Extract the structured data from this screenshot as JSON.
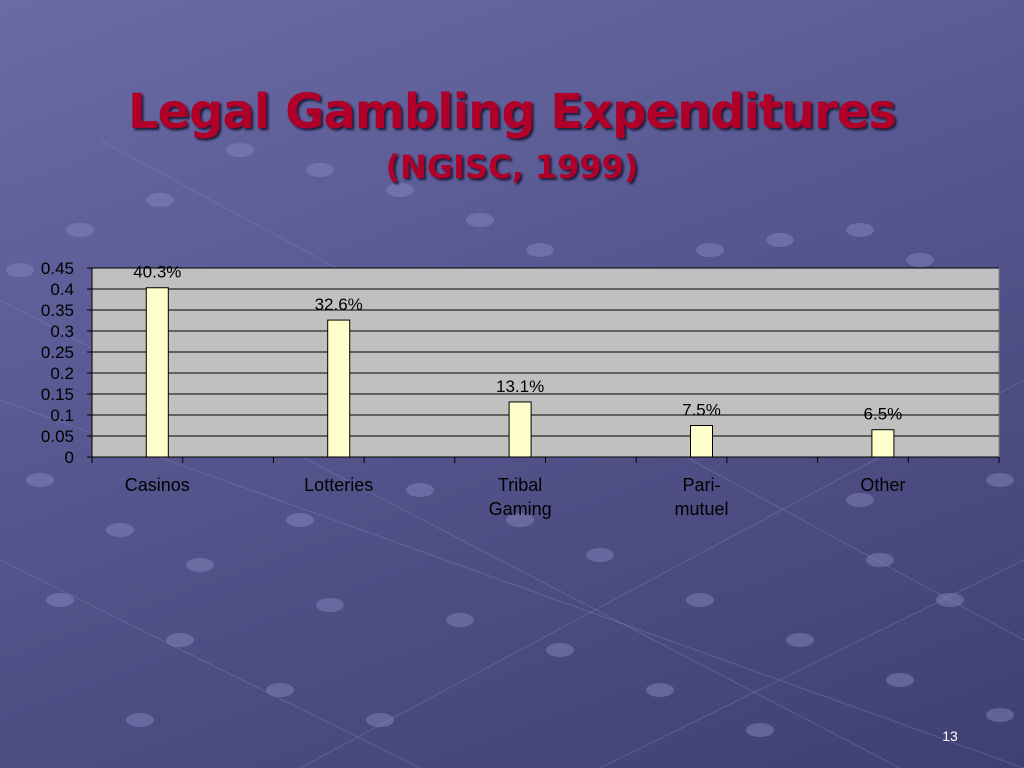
{
  "slide": {
    "title": "Legal Gambling Expenditures",
    "subtitle": "(NGISC, 1999)",
    "number": "13"
  },
  "colors": {
    "title": "#b0002a",
    "background": "#5b5b96",
    "plot_area": "#c0c0c0",
    "bar_fill": "#ffffcc",
    "bar_stroke": "#000000"
  },
  "chart_data": {
    "type": "bar",
    "categories": [
      [
        "Casinos"
      ],
      [
        "Lotteries"
      ],
      [
        "Tribal",
        "Gaming"
      ],
      [
        "Pari-",
        "mutuel"
      ],
      [
        "Other"
      ]
    ],
    "values": [
      0.403,
      0.326,
      0.131,
      0.075,
      0.065
    ],
    "data_labels": [
      "40.3%",
      "32.6%",
      "13.1%",
      "7.5%",
      "6.5%"
    ],
    "ylim": [
      0,
      0.45
    ],
    "yticks": [
      "0",
      "0.05",
      "0.1",
      "0.15",
      "0.2",
      "0.25",
      "0.3",
      "0.35",
      "0.4",
      "0.45"
    ],
    "ytick_values": [
      0,
      0.05,
      0.1,
      0.15,
      0.2,
      0.25,
      0.3,
      0.35,
      0.4,
      0.45
    ],
    "grid": true,
    "legend": "none"
  }
}
